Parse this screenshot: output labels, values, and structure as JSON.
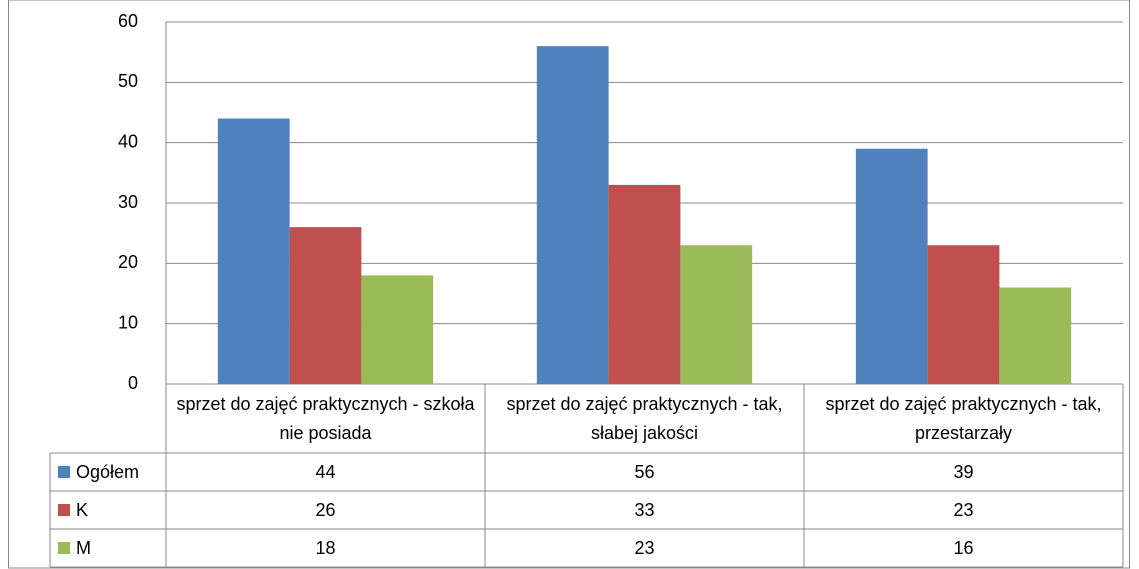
{
  "chart_data": {
    "type": "bar",
    "categories": [
      "sprzet do zajęć praktycznych - szkoła nie posiada",
      "sprzet do zajęć praktycznych - tak, słabej jakości",
      "sprzet do zajęć praktycznych - tak, przestarzały"
    ],
    "series": [
      {
        "name": "Ogółem",
        "color": "#4f81bd",
        "values": [
          44,
          56,
          39
        ]
      },
      {
        "name": "K",
        "color": "#c0504d",
        "values": [
          26,
          33,
          23
        ]
      },
      {
        "name": "M",
        "color": "#9bbb59",
        "values": [
          18,
          23,
          16
        ]
      }
    ],
    "ylim": [
      0,
      60
    ],
    "yticks": [
      0,
      10,
      20,
      30,
      40,
      50,
      60
    ],
    "grid": true,
    "legend": "table"
  }
}
